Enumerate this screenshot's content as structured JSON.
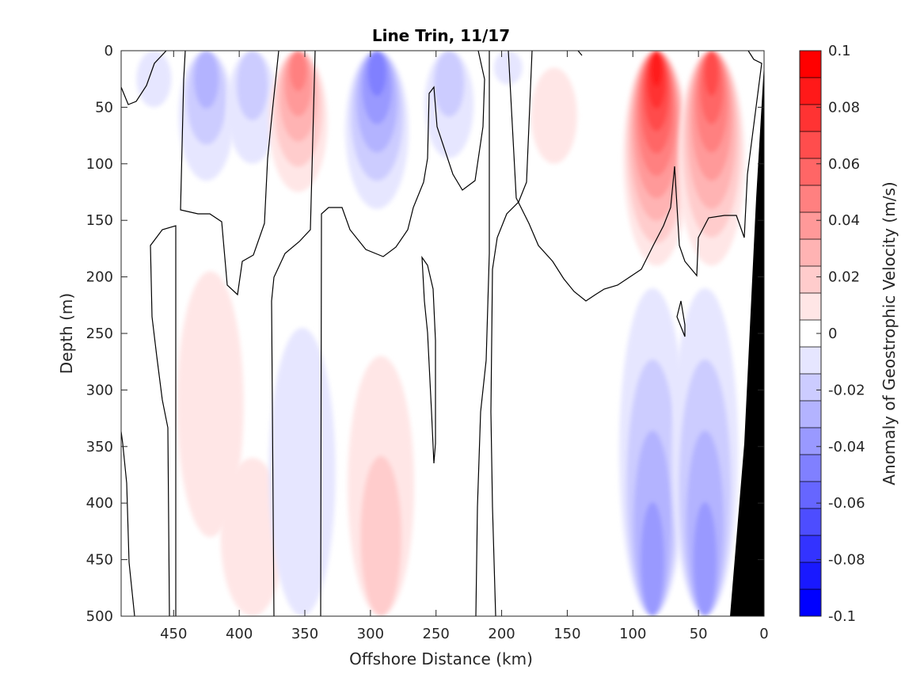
{
  "chart_data": {
    "type": "contour",
    "title": "Line Trin, 11/17",
    "xlabel": "Offshore Distance (km)",
    "ylabel": "Depth (m)",
    "xlim": [
      490,
      0
    ],
    "ylim": [
      0,
      500
    ],
    "x_reversed": true,
    "y_reversed": true,
    "xticks": [
      "450",
      "400",
      "350",
      "300",
      "250",
      "200",
      "150",
      "100",
      "50",
      "0"
    ],
    "yticks": [
      "0",
      "50",
      "100",
      "150",
      "200",
      "250",
      "300",
      "350",
      "400",
      "450",
      "500"
    ],
    "colorbar": {
      "label": "Anomaly of Geostrophic Velocity (m/s)",
      "range": [
        -0.1,
        0.1
      ],
      "levels": 21,
      "ticks": [
        "0.1",
        "0.08",
        "0.06",
        "0.04",
        "0.02",
        "0",
        "-0.02",
        "-0.04",
        "-0.06",
        "-0.08",
        "-0.1"
      ],
      "positive_color": "#ff0000",
      "negative_color": "#0000ff",
      "zero_color": "#ffffff"
    },
    "bathymetry_color": "#000000",
    "features": [
      {
        "sign": "negative",
        "peak": -0.01,
        "x_center": 465,
        "depth": [
          0,
          50
        ]
      },
      {
        "sign": "negative",
        "peak": -0.03,
        "x_center": 425,
        "depth": [
          0,
          115
        ]
      },
      {
        "sign": "negative",
        "peak": -0.02,
        "x_center": 390,
        "depth": [
          0,
          100
        ]
      },
      {
        "sign": "positive",
        "peak": 0.05,
        "x_center": 355,
        "depth": [
          0,
          125
        ]
      },
      {
        "sign": "negative",
        "peak": -0.05,
        "x_center": 295,
        "depth": [
          0,
          140
        ]
      },
      {
        "sign": "negative",
        "peak": -0.02,
        "x_center": 240,
        "depth": [
          0,
          95
        ]
      },
      {
        "sign": "negative",
        "peak": -0.01,
        "x_center": 195,
        "depth": [
          0,
          30
        ]
      },
      {
        "sign": "positive",
        "peak": 0.01,
        "x_center": 160,
        "depth": [
          15,
          100
        ]
      },
      {
        "sign": "positive",
        "peak": 0.09,
        "x_center": 82,
        "depth": [
          0,
          190
        ]
      },
      {
        "sign": "positive",
        "peak": 0.07,
        "x_center": 40,
        "depth": [
          0,
          190
        ]
      },
      {
        "sign": "positive",
        "peak": 0.01,
        "x_center": 422,
        "depth": [
          195,
          430
        ]
      },
      {
        "sign": "positive",
        "peak": 0.01,
        "x_center": 390,
        "depth": [
          360,
          500
        ]
      },
      {
        "sign": "negative",
        "peak": -0.01,
        "x_center": 352,
        "depth": [
          245,
          500
        ]
      },
      {
        "sign": "positive",
        "peak": 0.02,
        "x_center": 292,
        "depth": [
          270,
          500
        ]
      },
      {
        "sign": "negative",
        "peak": -0.04,
        "x_center": 85,
        "depth": [
          210,
          500
        ]
      },
      {
        "sign": "negative",
        "peak": -0.04,
        "x_center": 45,
        "depth": [
          210,
          500
        ]
      }
    ]
  }
}
